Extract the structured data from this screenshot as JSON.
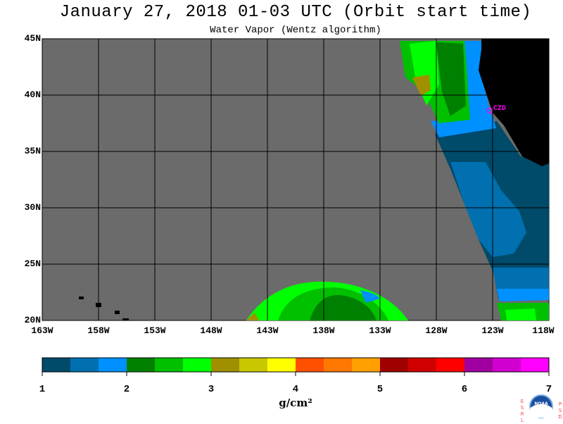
{
  "header": {
    "title": "January 27, 2018  01-03 UTC  (Orbit start time)",
    "subtitle": "Water Vapor (Wentz algorithm)"
  },
  "map": {
    "lon_range": [
      -163,
      -118
    ],
    "lat_range": [
      20,
      45
    ],
    "lat_labels": [
      "45N",
      "40N",
      "35N",
      "30N",
      "25N",
      "20N"
    ],
    "lon_labels": [
      "163W",
      "158W",
      "153W",
      "148W",
      "143W",
      "138W",
      "133W",
      "128W",
      "123W",
      "118W"
    ],
    "city_label": "CZD",
    "colors": {
      "no_data": "#6b6b6b",
      "land": "#000000",
      "grid": "#000000",
      "city": "#ff00ff"
    }
  },
  "colorbar": {
    "tick_labels": [
      "1",
      "2",
      "3",
      "4",
      "5",
      "6",
      "7"
    ],
    "units": "g/cm²",
    "colors": [
      "#004a6a",
      "#0070b0",
      "#0090ff",
      "#008000",
      "#00c000",
      "#00ff00",
      "#a09000",
      "#c8c800",
      "#ffff00",
      "#ff5000",
      "#ff7800",
      "#ffa000",
      "#a00000",
      "#d00000",
      "#ff0000",
      "#a000a0",
      "#d000d0",
      "#ff00ff"
    ]
  },
  "logo": {
    "left_letters": "ESRL",
    "right_letters": "PSD",
    "center_text": "NOAA"
  }
}
